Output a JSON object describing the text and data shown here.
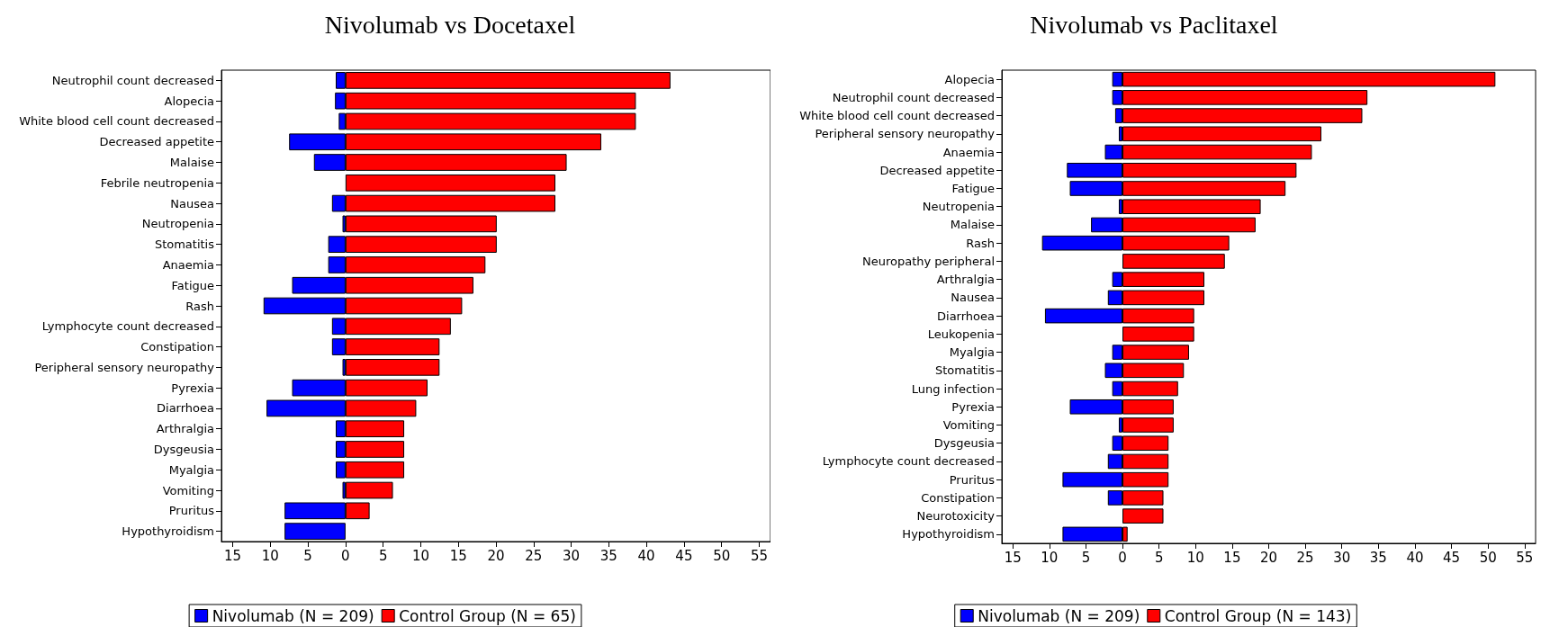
{
  "chart_data": [
    {
      "type": "bar",
      "title": "Nivolumab vs Docetaxel",
      "orientation": "horizontal",
      "stacked": true,
      "legend": "bottom",
      "grid": false,
      "categories": [
        "Neutrophil count decreased",
        "Alopecia",
        "White blood cell count decreased",
        "Decreased appetite",
        "Malaise",
        "Febrile neutropenia",
        "Nausea",
        "Neutropenia",
        "Stomatitis",
        "Anaemia",
        "Fatigue",
        "Rash",
        "Lymphocyte count decreased",
        "Constipation",
        "Peripheral sensory neuropathy",
        "Pyrexia",
        "Diarrhoea",
        "Arthralgia",
        "Dysgeusia",
        "Myalgia",
        "Vomiting",
        "Pruritus",
        "Hypothyroidism"
      ],
      "series": [
        {
          "name": "Nivolumab (N = 209)",
          "color": "#0000ff",
          "values": [
            -1.3,
            -1.4,
            -0.9,
            -7.5,
            -4.2,
            null,
            -1.8,
            -0.4,
            -2.3,
            -2.3,
            -7.1,
            -10.9,
            -1.8,
            -1.8,
            -0.4,
            -7.1,
            -10.5,
            -1.3,
            -1.3,
            -1.3,
            -0.4,
            -8.1,
            -8.1
          ]
        },
        {
          "name": "Control Group (N = 65)",
          "color": "#ff0000",
          "values": [
            43.2,
            38.6,
            38.6,
            34.0,
            29.4,
            27.9,
            27.9,
            20.1,
            20.1,
            18.6,
            17.0,
            15.5,
            14.0,
            12.5,
            12.5,
            10.9,
            9.4,
            7.8,
            7.8,
            7.8,
            6.3,
            3.2,
            null
          ]
        }
      ],
      "xlim": [
        -16.5,
        56.5
      ],
      "xticks": [
        {
          "value": -15,
          "label": "15"
        },
        {
          "value": -10,
          "label": "10"
        },
        {
          "value": -5,
          "label": "5"
        },
        0,
        5,
        10,
        15,
        20,
        25,
        30,
        35,
        40,
        45,
        50,
        55
      ]
    },
    {
      "type": "bar",
      "title": "Nivolumab vs Paclitaxel",
      "orientation": "horizontal",
      "stacked": true,
      "legend": "bottom",
      "grid": false,
      "categories": [
        "Alopecia",
        "Neutrophil count decreased",
        "White blood cell count decreased",
        "Peripheral sensory neuropathy",
        "Anaemia",
        "Decreased appetite",
        "Fatigue",
        "Neutropenia",
        "Malaise",
        "Rash",
        "Neuropathy peripheral",
        "Arthralgia",
        "Nausea",
        "Diarrhoea",
        "Leukopenia",
        "Myalgia",
        "Stomatitis",
        "Lung infection",
        "Pyrexia",
        "Vomiting",
        "Dysgeusia",
        "Lymphocyte count decreased",
        "Pruritus",
        "Constipation",
        "Neurotoxicity",
        "Hypothyroidism"
      ],
      "series": [
        {
          "name": "Nivolumab (N = 209)",
          "color": "#0000ff",
          "values": [
            -1.4,
            -1.4,
            -1.0,
            -0.5,
            -2.4,
            -7.6,
            -7.2,
            -0.5,
            -4.3,
            -11.0,
            null,
            -1.4,
            -2.0,
            -10.6,
            null,
            -1.4,
            -2.4,
            -1.4,
            -7.2,
            -0.5,
            -1.4,
            -2.0,
            -8.2,
            -2.0,
            null,
            -8.2
          ]
        },
        {
          "name": "Control Group (N = 143)",
          "color": "#ff0000",
          "values": [
            51.0,
            33.5,
            32.8,
            27.2,
            25.9,
            23.8,
            22.3,
            18.9,
            18.2,
            14.6,
            14.0,
            11.2,
            11.2,
            9.8,
            9.8,
            9.1,
            8.4,
            7.6,
            7.0,
            7.0,
            6.3,
            6.3,
            6.3,
            5.6,
            5.6,
            0.7
          ]
        }
      ],
      "xlim": [
        -16.5,
        56.5
      ],
      "xticks": [
        {
          "value": -15,
          "label": "15"
        },
        {
          "value": -10,
          "label": "10"
        },
        {
          "value": -5,
          "label": "5"
        },
        0,
        5,
        10,
        15,
        20,
        25,
        30,
        35,
        40,
        45,
        50,
        55
      ]
    }
  ]
}
